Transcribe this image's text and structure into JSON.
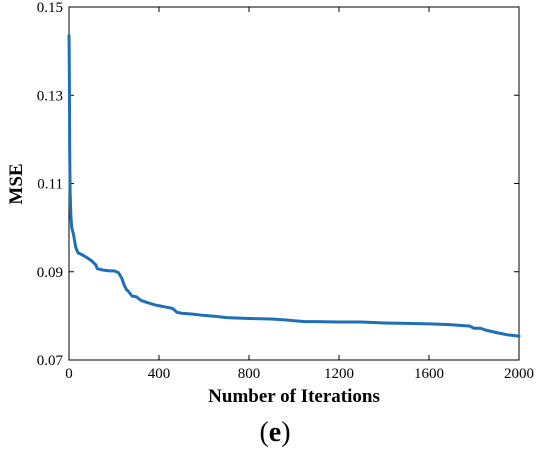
{
  "chart_data": {
    "type": "line",
    "title": "",
    "xlabel": "Number of Iterations",
    "ylabel": "MSE",
    "xlim": [
      0,
      2000
    ],
    "ylim": [
      0.07,
      0.15
    ],
    "xticks": [
      0,
      400,
      800,
      1200,
      1600,
      2000
    ],
    "xtick_labels": [
      "0",
      "400",
      "800",
      "1200",
      "1600",
      "2000"
    ],
    "yticks": [
      0.07,
      0.09,
      0.11,
      0.13,
      0.15
    ],
    "ytick_labels": [
      "0.07",
      "0.09",
      "0.11",
      "0.13",
      "0.15"
    ],
    "grid": false,
    "series": [
      {
        "color": "#1f6fb8",
        "x": [
          0,
          1,
          2,
          3,
          5,
          8,
          12,
          20,
          30,
          40,
          60,
          80,
          100,
          120,
          125,
          150,
          180,
          200,
          220,
          235,
          245,
          255,
          265,
          280,
          300,
          320,
          350,
          380,
          400,
          430,
          460,
          480,
          500,
          550,
          600,
          650,
          700,
          800,
          900,
          960,
          1000,
          1050,
          1100,
          1200,
          1300,
          1350,
          1400,
          1500,
          1600,
          1650,
          1700,
          1750,
          1780,
          1800,
          1830,
          1850,
          1900,
          1950,
          2000
        ],
        "y": [
          0.1435,
          0.139,
          0.131,
          0.118,
          0.108,
          0.103,
          0.1,
          0.0985,
          0.0955,
          0.0943,
          0.0938,
          0.0932,
          0.0925,
          0.0915,
          0.0907,
          0.0904,
          0.0902,
          0.0902,
          0.0898,
          0.0885,
          0.087,
          0.086,
          0.0855,
          0.0845,
          0.0843,
          0.0835,
          0.083,
          0.0825,
          0.0823,
          0.082,
          0.0817,
          0.0808,
          0.0806,
          0.0804,
          0.0801,
          0.0799,
          0.0796,
          0.0794,
          0.0793,
          0.0791,
          0.0789,
          0.0787,
          0.0787,
          0.0786,
          0.0786,
          0.0785,
          0.0784,
          0.0783,
          0.0782,
          0.0781,
          0.078,
          0.0778,
          0.0777,
          0.0772,
          0.0772,
          0.0768,
          0.0762,
          0.0757,
          0.0754
        ]
      }
    ]
  },
  "panel_label": {
    "open": "(",
    "letter": "e",
    "close": ")"
  }
}
